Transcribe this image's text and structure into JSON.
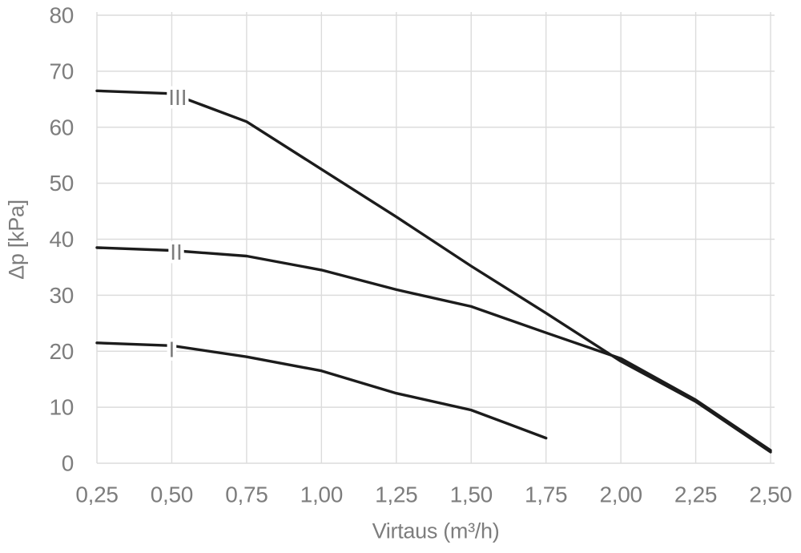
{
  "chart_data": {
    "type": "line",
    "title": "",
    "xlabel": "Virtaus (m³/h)",
    "ylabel": "Δp [kPa]",
    "xlim": [
      0.25,
      2.5
    ],
    "ylim": [
      0,
      80
    ],
    "grid": true,
    "legend_position": "inline-labels-on-curves",
    "x_ticks": [
      {
        "v": 0.25,
        "label": "0,25"
      },
      {
        "v": 0.5,
        "label": "0,50"
      },
      {
        "v": 0.75,
        "label": "0,75"
      },
      {
        "v": 1.0,
        "label": "1,00"
      },
      {
        "v": 1.25,
        "label": "1,25"
      },
      {
        "v": 1.5,
        "label": "1,50"
      },
      {
        "v": 1.75,
        "label": "1,75"
      },
      {
        "v": 2.0,
        "label": "2,00"
      },
      {
        "v": 2.25,
        "label": "2,25"
      },
      {
        "v": 2.5,
        "label": "2,50"
      }
    ],
    "y_ticks": [
      {
        "v": 0,
        "label": "0"
      },
      {
        "v": 10,
        "label": "10"
      },
      {
        "v": 20,
        "label": "20"
      },
      {
        "v": 30,
        "label": "30"
      },
      {
        "v": 40,
        "label": "40"
      },
      {
        "v": 50,
        "label": "50"
      },
      {
        "v": 60,
        "label": "60"
      },
      {
        "v": 70,
        "label": "70"
      },
      {
        "v": 80,
        "label": "80"
      }
    ],
    "series": [
      {
        "name": "I",
        "label_at": {
          "x": 0.5,
          "y": 20.3
        },
        "points": [
          [
            0.25,
            21.5
          ],
          [
            0.5,
            21.0
          ],
          [
            0.75,
            19.0
          ],
          [
            1.0,
            16.5
          ],
          [
            1.25,
            12.5
          ],
          [
            1.5,
            9.5
          ],
          [
            1.75,
            4.5
          ]
        ]
      },
      {
        "name": "II",
        "label_at": {
          "x": 0.515,
          "y": 37.7
        },
        "points": [
          [
            0.25,
            38.5
          ],
          [
            0.5,
            38.0
          ],
          [
            0.75,
            37.0
          ],
          [
            1.0,
            34.5
          ],
          [
            1.25,
            31.0
          ],
          [
            1.5,
            28.0
          ],
          [
            1.75,
            23.3
          ],
          [
            2.0,
            18.7
          ],
          [
            2.25,
            11.3
          ],
          [
            2.5,
            2.3
          ]
        ]
      },
      {
        "name": "III",
        "label_at": {
          "x": 0.52,
          "y": 65.3
        },
        "points": [
          [
            0.25,
            66.5
          ],
          [
            0.5,
            66.0
          ],
          [
            0.75,
            61.0
          ],
          [
            1.0,
            52.5
          ],
          [
            1.25,
            44.0
          ],
          [
            1.5,
            35.2
          ],
          [
            1.75,
            26.8
          ],
          [
            2.0,
            18.2
          ],
          [
            2.25,
            11.0
          ],
          [
            2.5,
            2.0
          ]
        ]
      }
    ],
    "colors": {
      "line": "#1c1c1c",
      "grid": "#dcdcdc",
      "text": "#7d7d7d",
      "background": "#ffffff"
    }
  }
}
